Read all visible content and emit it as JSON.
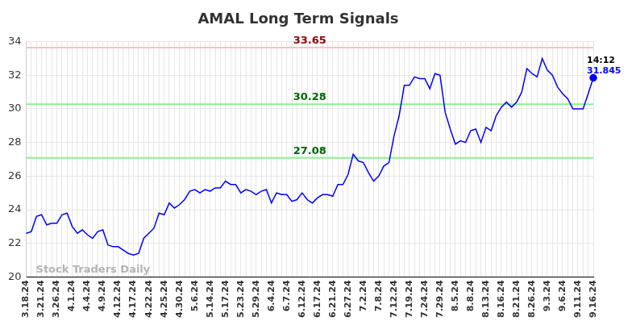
{
  "chart_data": {
    "type": "line",
    "title": "AMAL Long Term Signals",
    "watermark": "Stock Traders Daily",
    "categories": [
      "3.18.24",
      null,
      null,
      "3.21.24",
      null,
      null,
      "3.26.24",
      null,
      null,
      "4.1.24",
      null,
      null,
      "4.4.24",
      null,
      null,
      "4.9.24",
      null,
      null,
      "4.12.24",
      null,
      null,
      "4.17.24",
      null,
      null,
      "4.22.24",
      null,
      null,
      "4.25.24",
      null,
      null,
      "4.30.24",
      null,
      null,
      "5.6.24",
      null,
      null,
      "5.14.24",
      null,
      null,
      "5.17.24",
      null,
      null,
      "5.23.24",
      null,
      null,
      "5.29.24",
      null,
      null,
      "6.4.24",
      null,
      null,
      "6.7.24",
      null,
      null,
      "6.12.24",
      null,
      null,
      "6.17.24",
      null,
      null,
      "6.21.24",
      null,
      null,
      "6.27.24",
      null,
      null,
      "7.2.24",
      null,
      null,
      "7.8.24",
      null,
      null,
      "7.12.24",
      null,
      null,
      "7.19.24",
      null,
      null,
      "7.24.24",
      null,
      null,
      "7.29.24",
      null,
      null,
      "8.5.24",
      null,
      null,
      "8.8.24",
      null,
      null,
      "8.13.24",
      null,
      null,
      "8.16.24",
      null,
      null,
      "8.21.24",
      null,
      null,
      "8.26.24",
      null,
      null,
      "9.3.24",
      null,
      null,
      "9.6.24",
      null,
      null,
      "9.11.24",
      null,
      null,
      "9.16.24"
    ],
    "values": [
      22.6,
      22.7,
      23.6,
      23.7,
      23.1,
      23.2,
      23.2,
      23.7,
      23.8,
      23.0,
      22.6,
      22.8,
      22.5,
      22.3,
      22.7,
      22.8,
      21.9,
      21.8,
      21.8,
      21.6,
      21.4,
      21.3,
      21.4,
      22.3,
      22.6,
      22.9,
      23.8,
      23.7,
      24.4,
      24.1,
      24.3,
      24.6,
      25.1,
      25.2,
      25.0,
      25.2,
      25.1,
      25.3,
      25.3,
      25.7,
      25.5,
      25.5,
      25.0,
      25.2,
      25.1,
      24.9,
      25.1,
      25.2,
      24.4,
      25.0,
      24.9,
      24.9,
      24.5,
      24.6,
      25.0,
      24.6,
      24.4,
      24.7,
      24.9,
      24.9,
      24.8,
      25.5,
      25.5,
      26.1,
      27.3,
      26.9,
      26.8,
      26.2,
      25.7,
      26.0,
      26.6,
      26.8,
      28.4,
      29.6,
      31.4,
      31.4,
      31.9,
      31.8,
      31.8,
      31.2,
      32.1,
      32.0,
      29.8,
      28.8,
      27.9,
      28.1,
      28.0,
      28.7,
      28.8,
      28.0,
      28.9,
      28.7,
      29.6,
      30.1,
      30.4,
      30.1,
      30.4,
      31.0,
      32.4,
      32.1,
      31.9,
      33.0,
      32.3,
      32.0,
      31.3,
      30.9,
      30.6,
      30.0,
      30.0,
      30.0,
      30.9,
      31.845
    ],
    "color": "#0000ff",
    "ylim": [
      20,
      34
    ],
    "yticks": [
      20,
      22,
      24,
      26,
      28,
      30,
      32,
      34
    ],
    "grid": true,
    "annotations": [
      {
        "value": 33.65,
        "label": "33.65",
        "color": "#ffc0c0",
        "label_color": "#8b0000"
      },
      {
        "value": 30.28,
        "label": "30.28",
        "color": "#90ee90",
        "label_color": "#006400"
      },
      {
        "value": 27.08,
        "label": "27.08",
        "color": "#90ee90",
        "label_color": "#006400"
      }
    ],
    "last_point": {
      "time": "14:12",
      "value_label": "31.845"
    }
  }
}
